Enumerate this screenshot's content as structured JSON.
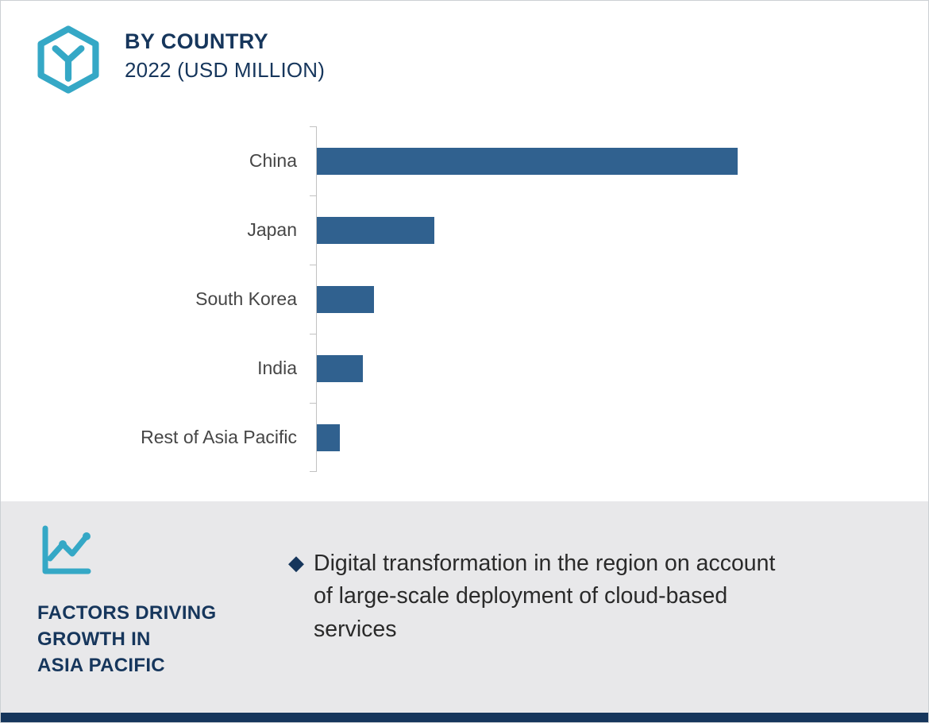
{
  "header": {
    "title": "BY COUNTRY",
    "subtitle": "2022 (USD MILLION)"
  },
  "chart_data": {
    "type": "bar",
    "orientation": "horizontal",
    "title": "BY COUNTRY",
    "subtitle": "2022 (USD MILLION)",
    "categories": [
      "China",
      "Japan",
      "South Korea",
      "India",
      "Rest of Asia Pacific"
    ],
    "values": [
      100,
      28,
      13.5,
      11,
      5.5
    ],
    "value_note": "axis values not labeled; bar lengths estimated relative to China = 100",
    "xlabel": "",
    "ylabel": "",
    "legend": false,
    "grid": false,
    "bar_color": "#30618f"
  },
  "footer": {
    "heading": "FACTORS DRIVING\nGROWTH IN\nASIA PACIFIC",
    "bullet_marker": "◆",
    "bullet": "Digital transformation in the region on account of large-scale deployment of cloud-based services"
  },
  "icons": {
    "logo": "hexagon-y-logo-icon",
    "growth": "line-chart-icon",
    "bullet": "diamond-bullet-icon"
  },
  "colors": {
    "teal": "#35a8c6",
    "navy": "#16365c",
    "bar_blue": "#30618f",
    "panel_gray": "#e8e8ea",
    "text_gray": "#464646"
  }
}
